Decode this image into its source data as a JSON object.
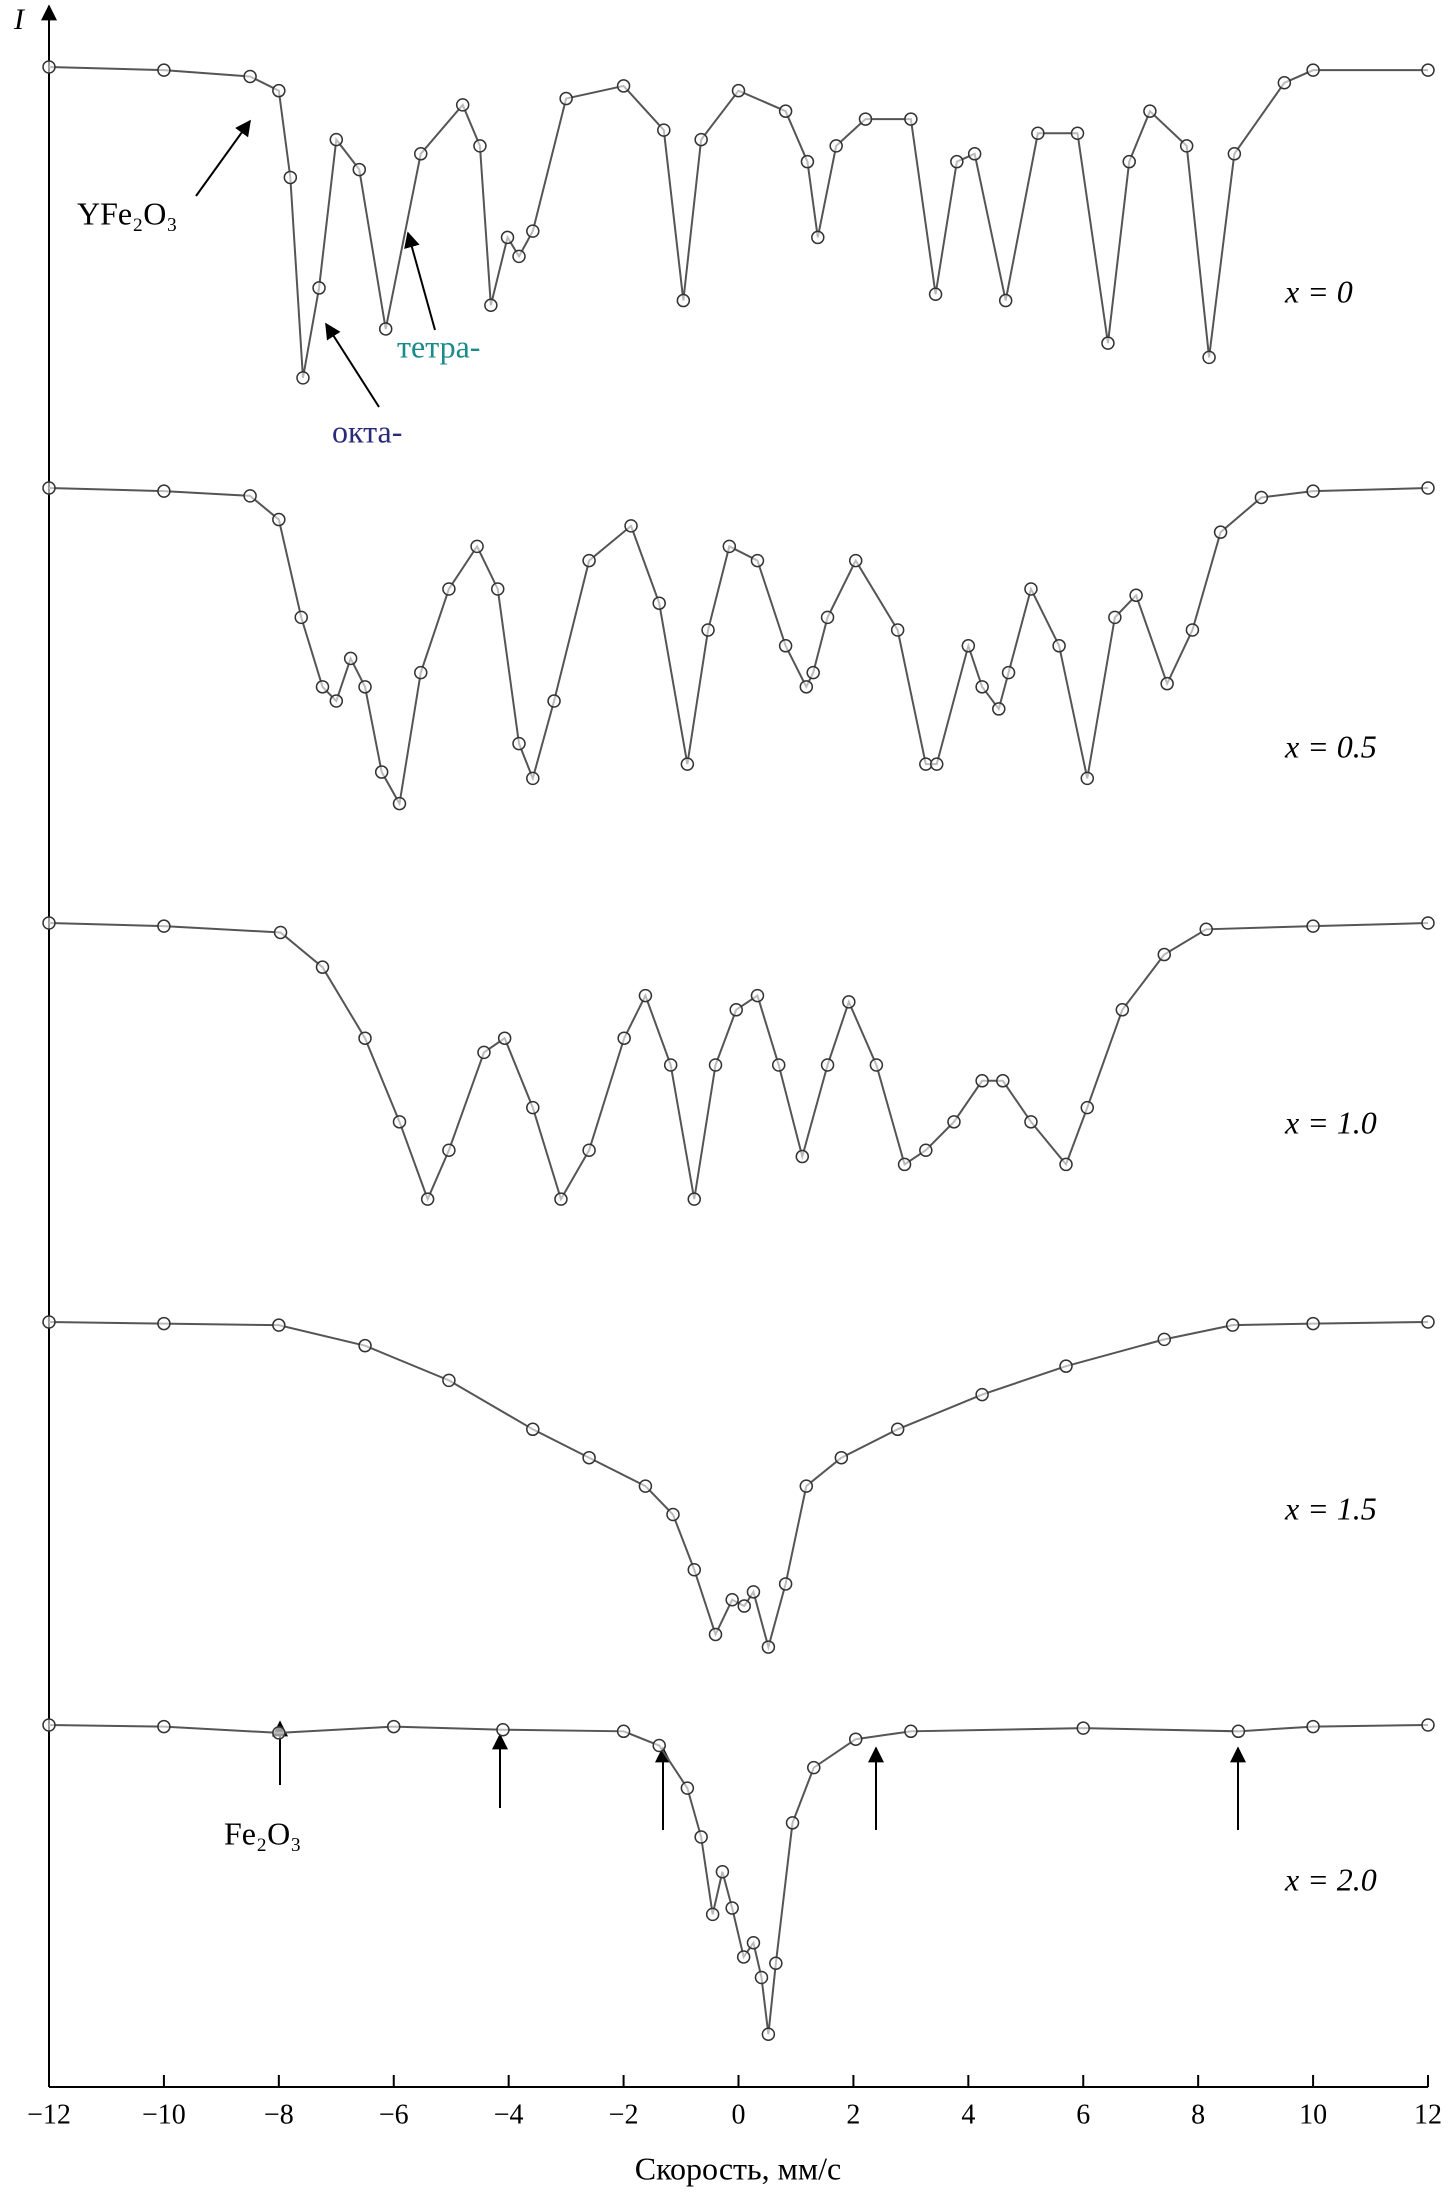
{
  "chart_data": {
    "type": "scatter",
    "xlabel": "Скорость, мм/с",
    "ylabel": "I",
    "xlim": [
      -12,
      12
    ],
    "xticks": [
      {
        "value": -12,
        "label": "−12"
      },
      {
        "value": -10,
        "label": "−10"
      },
      {
        "value": -8,
        "label": "−8"
      },
      {
        "value": -6,
        "label": "−6"
      },
      {
        "value": -4,
        "label": "−4"
      },
      {
        "value": -2,
        "label": "−2"
      },
      0,
      2,
      4,
      6,
      8,
      10,
      12
    ],
    "point_color": "#333333",
    "line_color": "#555555",
    "spectra": [
      {
        "name": "x = 0",
        "x": [
          -12,
          -10,
          -8.5,
          -8,
          -7.8,
          -7.58,
          -7.3,
          -7.0,
          -6.6,
          -6.14,
          -5.53,
          -4.8,
          -4.5,
          -4.31,
          -4.02,
          -3.82,
          -3.58,
          -3.0,
          -2.0,
          -1.3,
          -0.96,
          -0.65,
          0,
          0.82,
          1.2,
          1.38,
          1.7,
          2.21,
          3.0,
          3.43,
          3.8,
          4.11,
          4.65,
          5.21,
          5.9,
          6.43,
          6.8,
          7.16,
          7.8,
          8.19,
          8.63,
          9.5,
          10,
          12
        ],
        "values": [
          1,
          0.998,
          0.994,
          0.985,
          0.93,
          0.803,
          0.86,
          0.954,
          0.935,
          0.834,
          0.945,
          0.976,
          0.95,
          0.849,
          0.892,
          0.88,
          0.896,
          0.98,
          0.988,
          0.96,
          0.852,
          0.954,
          0.985,
          0.972,
          0.94,
          0.892,
          0.95,
          0.967,
          0.967,
          0.856,
          0.94,
          0.945,
          0.852,
          0.958,
          0.958,
          0.825,
          0.94,
          0.972,
          0.95,
          0.816,
          0.945,
          0.99,
          0.998,
          0.998
        ]
      },
      {
        "name": "x = 0.5",
        "x": [
          -12,
          -10,
          -8.5,
          -8,
          -7.61,
          -7.24,
          -7.0,
          -6.75,
          -6.5,
          -6.21,
          -5.9,
          -5.53,
          -5.04,
          -4.55,
          -4.19,
          -3.82,
          -3.58,
          -3.21,
          -2.6,
          -1.87,
          -1.38,
          -0.89,
          -0.53,
          -0.16,
          0.33,
          0.82,
          1.18,
          1.3,
          1.55,
          2.04,
          2.77,
          3.26,
          3.45,
          4.0,
          4.24,
          4.53,
          4.7,
          5.09,
          5.58,
          6.07,
          6.55,
          6.92,
          7.46,
          7.9,
          8.39,
          9.1,
          10,
          12
        ],
        "values": [
          1,
          0.998,
          0.995,
          0.98,
          0.918,
          0.874,
          0.865,
          0.892,
          0.874,
          0.82,
          0.8,
          0.883,
          0.936,
          0.963,
          0.936,
          0.838,
          0.816,
          0.865,
          0.954,
          0.976,
          0.927,
          0.825,
          0.91,
          0.963,
          0.954,
          0.9,
          0.874,
          0.883,
          0.918,
          0.954,
          0.91,
          0.825,
          0.825,
          0.9,
          0.874,
          0.86,
          0.883,
          0.936,
          0.9,
          0.816,
          0.918,
          0.932,
          0.876,
          0.91,
          0.972,
          0.994,
          0.998,
          1
        ]
      },
      {
        "name": "x = 1.0",
        "x": [
          -12,
          -10,
          -7.97,
          -7.24,
          -6.5,
          -5.9,
          -5.41,
          -5.04,
          -4.43,
          -4.07,
          -3.58,
          -3.09,
          -2.6,
          -1.99,
          -1.62,
          -1.18,
          -0.77,
          -0.4,
          -0.04,
          0.33,
          0.7,
          1.11,
          1.55,
          1.92,
          2.4,
          2.89,
          3.26,
          3.75,
          4.24,
          4.6,
          5.09,
          5.7,
          6.07,
          6.68,
          7.41,
          8.14,
          10,
          12
        ],
        "values": [
          1,
          0.998,
          0.994,
          0.972,
          0.927,
          0.874,
          0.825,
          0.856,
          0.918,
          0.927,
          0.883,
          0.825,
          0.856,
          0.927,
          0.954,
          0.91,
          0.825,
          0.91,
          0.945,
          0.954,
          0.91,
          0.852,
          0.91,
          0.95,
          0.91,
          0.847,
          0.856,
          0.874,
          0.9,
          0.9,
          0.874,
          0.847,
          0.883,
          0.945,
          0.98,
          0.996,
          0.998,
          1
        ]
      },
      {
        "name": "x = 1.5",
        "x": [
          -12,
          -10,
          -8,
          -6.5,
          -5.04,
          -3.58,
          -2.6,
          -1.62,
          -1.14,
          -0.77,
          -0.4,
          -0.11,
          0.1,
          0.26,
          0.52,
          0.82,
          1.18,
          1.79,
          2.77,
          4.24,
          5.7,
          7.41,
          8.6,
          10,
          12
        ],
        "values": [
          1,
          0.999,
          0.998,
          0.985,
          0.963,
          0.932,
          0.914,
          0.896,
          0.878,
          0.843,
          0.802,
          0.824,
          0.82,
          0.829,
          0.794,
          0.834,
          0.896,
          0.914,
          0.932,
          0.954,
          0.972,
          0.989,
          0.998,
          0.999,
          1
        ]
      },
      {
        "name": "x = 2.0",
        "x": [
          -12,
          -10,
          -8,
          -6,
          -4.1,
          -2,
          -1.38,
          -0.89,
          -0.65,
          -0.45,
          -0.28,
          -0.11,
          0.09,
          0.26,
          0.4,
          0.52,
          0.65,
          0.94,
          1.31,
          2.04,
          3,
          6,
          8.7,
          10,
          12
        ],
        "values": [
          1,
          0.999,
          0.995,
          0.999,
          0.997,
          0.996,
          0.987,
          0.96,
          0.929,
          0.88,
          0.907,
          0.884,
          0.853,
          0.862,
          0.84,
          0.804,
          0.849,
          0.938,
          0.973,
          0.991,
          0.996,
          0.998,
          0.996,
          0.999,
          1
        ]
      }
    ],
    "annotations": [
      {
        "text": "YFe₂O₃",
        "color": "#000000"
      },
      {
        "text": "тетра-",
        "color": "#1a8a8a"
      },
      {
        "text": "окта-",
        "color": "#2a2a7a"
      },
      {
        "text": "Fe₂O₃",
        "color": "#000000"
      }
    ]
  }
}
